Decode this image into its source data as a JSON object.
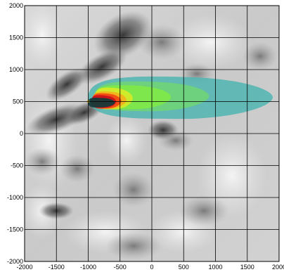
{
  "chart_data": {
    "type": "heatmap",
    "title": "",
    "xlabel": "",
    "ylabel": "",
    "xlim": [
      -2000,
      2000
    ],
    "ylim": [
      -2000,
      2000
    ],
    "grid": true,
    "x_ticks": [
      "-2000",
      "-1500",
      "-1000",
      "-500",
      "0",
      "500",
      "1000",
      "1500",
      "2000"
    ],
    "y_ticks": [
      "2000",
      "1500",
      "1000",
      "500",
      "0",
      "-500",
      "-1000",
      "-1500",
      "-2000"
    ],
    "x_tick_values": [
      -2000,
      -1500,
      -1000,
      -500,
      0,
      500,
      1000,
      1500,
      2000
    ],
    "y_tick_values": [
      2000,
      1500,
      1000,
      500,
      0,
      -500,
      -1000,
      -1500,
      -2000
    ],
    "grid_lines": [
      -2000,
      -1500,
      -1000,
      -500,
      0,
      500,
      1000,
      1500,
      2000
    ],
    "background": "grayscale terrain relief",
    "plume": {
      "source": [
        -1000,
        500
      ],
      "extent_x": [
        -1000,
        1900
      ],
      "extent_y": [
        70,
        950
      ],
      "contours": [
        {
          "level": 1,
          "color": "#4fb5b0",
          "x": [
            -1000,
            1900
          ],
          "y": [
            230,
            900
          ]
        },
        {
          "level": 2,
          "color": "#6fd27a",
          "x": [
            -900,
            900
          ],
          "y": [
            350,
            820
          ]
        },
        {
          "level": 3,
          "color": "#7ee84a",
          "x": [
            -900,
            300
          ],
          "y": [
            380,
            760
          ]
        },
        {
          "level": 4,
          "color": "#d4ea28",
          "x": [
            -900,
            -300
          ],
          "y": [
            380,
            720
          ]
        },
        {
          "level": 5,
          "color": "#f2b21c",
          "x": [
            -930,
            -400
          ],
          "y": [
            390,
            660
          ]
        },
        {
          "level": 6,
          "color": "#f04a14",
          "x": [
            -940,
            -480
          ],
          "y": [
            390,
            630
          ]
        },
        {
          "level": 7,
          "color": "#c8121a",
          "x": [
            -950,
            -560
          ],
          "y": [
            400,
            600
          ]
        },
        {
          "level": 8,
          "color": "#163a3a",
          "x": [
            -1000,
            -580
          ],
          "y": [
            410,
            560
          ]
        }
      ]
    },
    "colors": {
      "grid": "#000000",
      "outer_plume": "#4fb5b0",
      "core": "#163a3a"
    }
  }
}
